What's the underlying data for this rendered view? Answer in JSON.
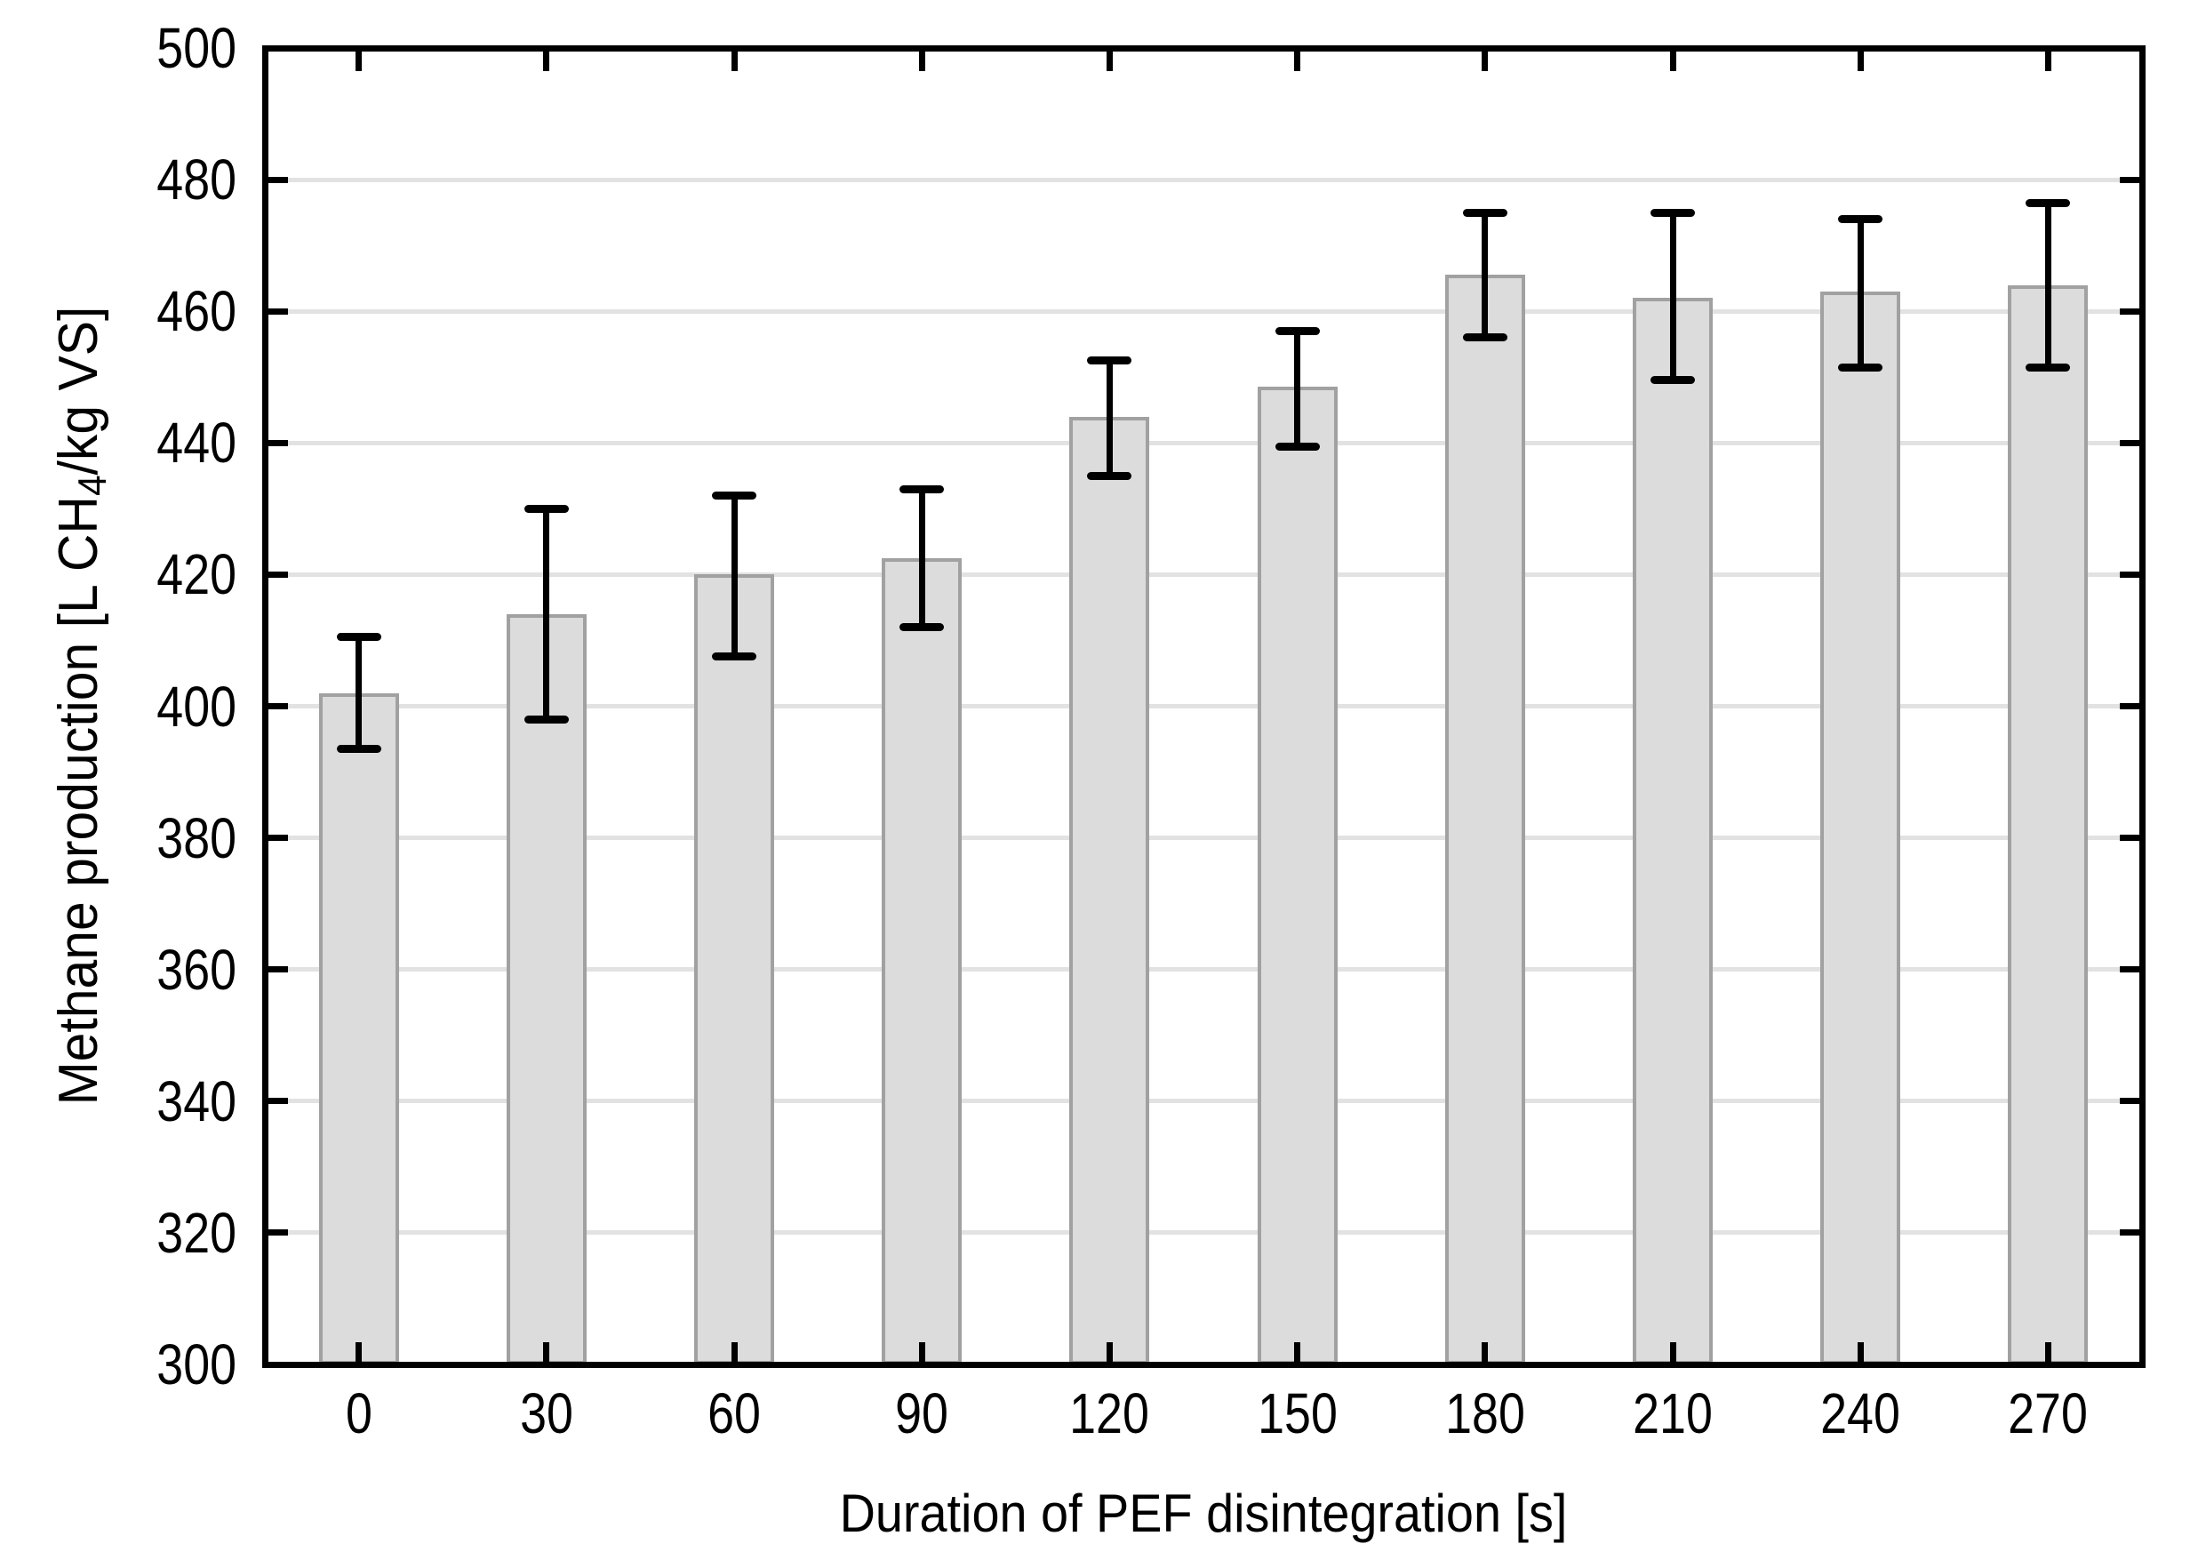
{
  "figure": {
    "background": "#FFFFFF"
  },
  "chart_data": {
    "type": "bar",
    "title": "",
    "categories": [
      "0",
      "30",
      "60",
      "90",
      "120",
      "150",
      "180",
      "210",
      "240",
      "270"
    ],
    "values": [
      402,
      414,
      420,
      422.5,
      444,
      448.5,
      465.5,
      462,
      463,
      464
    ],
    "error_upper_abs": [
      410.5,
      430,
      432,
      433,
      452.5,
      457,
      475,
      475,
      474,
      476.5
    ],
    "error_lower_abs": [
      393.5,
      398,
      407.5,
      412,
      435,
      439.5,
      456,
      449.5,
      451.5,
      451.5
    ],
    "xlabel": "Duration of PEF disintegration [s]",
    "ylabel": "Methane production [L CH₄/kg VS]",
    "ylabel_parts": {
      "prefix": "Methane production [L CH",
      "sub": "4",
      "suffix": "/kg VS]"
    },
    "ylim": [
      300,
      500
    ],
    "ytick_step": 20,
    "ytick_labels": [
      "300",
      "320",
      "340",
      "360",
      "380",
      "400",
      "420",
      "440",
      "460",
      "480",
      "500"
    ],
    "grid": "horizontal-major",
    "legend_position": "none",
    "colors": {
      "bar_fill": "#DCDCDC",
      "bar_border": "#A1A1A1",
      "error_bar": "#000000",
      "gridline": "#E2E2E2",
      "axis": "#000000",
      "text": "#000000",
      "background": "#FFFFFF"
    }
  }
}
